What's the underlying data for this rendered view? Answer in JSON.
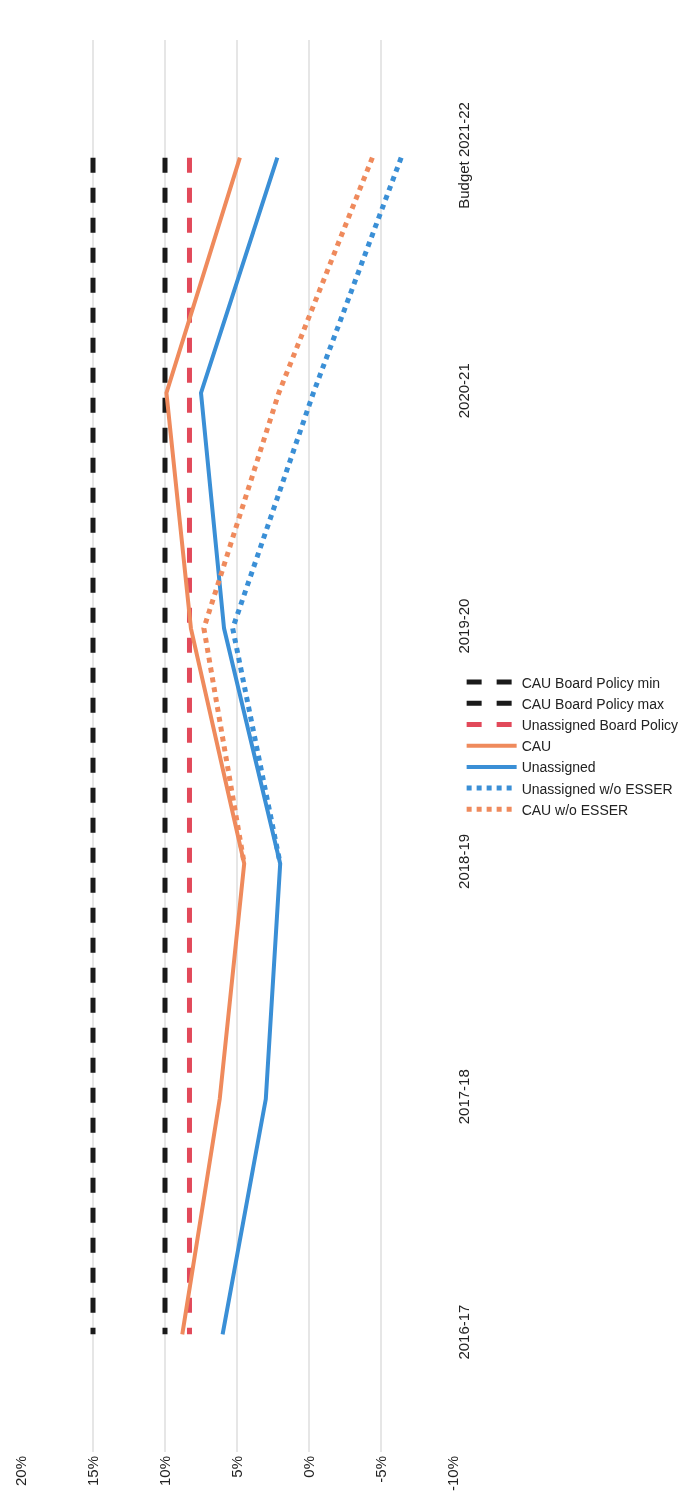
{
  "chart_data": {
    "type": "line",
    "orientation": "horizontal",
    "categories": [
      "Budget 2021-22",
      "2020-21",
      "2019-20",
      "2018-19",
      "2017-18",
      "2016-17"
    ],
    "series": [
      {
        "name": "CAU Board Policy min",
        "color": "#1a1a1a",
        "line_style": "dashed",
        "values": [
          10,
          10,
          10,
          10,
          10,
          10
        ]
      },
      {
        "name": "CAU Board Policy max",
        "color": "#1a1a1a",
        "line_style": "dashed",
        "values": [
          15,
          15,
          15,
          15,
          15,
          15
        ]
      },
      {
        "name": "Unassigned Board Policy",
        "color": "#e2495a",
        "line_style": "dashed",
        "values": [
          8.3,
          8.3,
          8.3,
          8.3,
          8.3,
          8.3
        ]
      },
      {
        "name": "CAU",
        "color": "#ef8a5c",
        "line_style": "solid",
        "values": [
          4.8,
          9.9,
          8.2,
          4.5,
          6.2,
          8.8
        ]
      },
      {
        "name": "Unassigned",
        "color": "#3a8fd6",
        "line_style": "solid",
        "values": [
          2.2,
          7.5,
          5.9,
          2.0,
          3.0,
          6.0
        ]
      },
      {
        "name": "Unassigned w/o ESSER",
        "color": "#3a8fd6",
        "line_style": "dotted",
        "values": [
          -6.4,
          -0.3,
          5.3,
          2.0,
          null,
          null
        ]
      },
      {
        "name": "CAU w/o ESSER",
        "color": "#ef8a5c",
        "line_style": "dotted",
        "values": [
          -4.4,
          2.1,
          7.3,
          4.5,
          null,
          null
        ]
      }
    ],
    "xlim": [
      20,
      -10
    ],
    "xticks": [
      {
        "value": 20,
        "label": "20%"
      },
      {
        "value": 15,
        "label": "15%"
      },
      {
        "value": 10,
        "label": "10%"
      },
      {
        "value": 5,
        "label": "5%"
      },
      {
        "value": 0,
        "label": "0%"
      },
      {
        "value": -5,
        "label": "-5%"
      },
      {
        "value": -10,
        "label": "-10%"
      }
    ],
    "grid": "x",
    "legend": "right"
  }
}
